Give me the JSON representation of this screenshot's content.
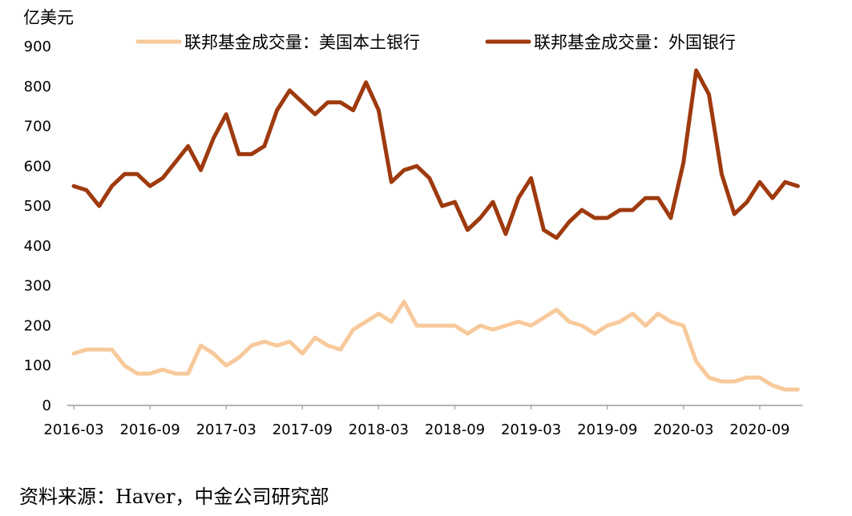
{
  "chart_data": {
    "type": "line",
    "y_unit": "亿美元",
    "ylim": [
      0,
      900
    ],
    "y_ticks": [
      0,
      100,
      200,
      300,
      400,
      500,
      600,
      700,
      800,
      900
    ],
    "x_start": "2016-03",
    "x_tick_labels": [
      "2016-03",
      "2016-09",
      "2017-03",
      "2017-09",
      "2018-03",
      "2018-09",
      "2019-03",
      "2019-09",
      "2020-03",
      "2020-09"
    ],
    "grid": false,
    "legend_position": "top",
    "series": [
      {
        "name": "联邦基金成交量：美国本土银行",
        "color": "#F7C99B",
        "values": [
          130,
          140,
          140,
          140,
          100,
          80,
          80,
          90,
          80,
          80,
          150,
          130,
          100,
          120,
          150,
          160,
          150,
          160,
          130,
          170,
          150,
          140,
          190,
          210,
          230,
          210,
          260,
          200,
          200,
          200,
          200,
          180,
          200,
          190,
          200,
          210,
          200,
          220,
          240,
          210,
          200,
          180,
          200,
          210,
          230,
          200,
          230,
          210,
          200,
          110,
          70,
          60,
          60,
          70,
          70,
          50,
          40,
          40
        ]
      },
      {
        "name": "联邦基金成交量：外国银行",
        "color": "#9E3A0E",
        "values": [
          550,
          540,
          500,
          550,
          580,
          580,
          550,
          570,
          610,
          650,
          590,
          670,
          730,
          630,
          630,
          650,
          740,
          790,
          760,
          730,
          760,
          760,
          740,
          810,
          740,
          560,
          590,
          600,
          570,
          500,
          510,
          440,
          470,
          510,
          430,
          520,
          570,
          440,
          420,
          460,
          490,
          470,
          470,
          490,
          490,
          520,
          520,
          470,
          610,
          840,
          780,
          580,
          480,
          510,
          560,
          520,
          560,
          550
        ]
      }
    ]
  },
  "source": "资料来源：Haver，中金公司研究部"
}
